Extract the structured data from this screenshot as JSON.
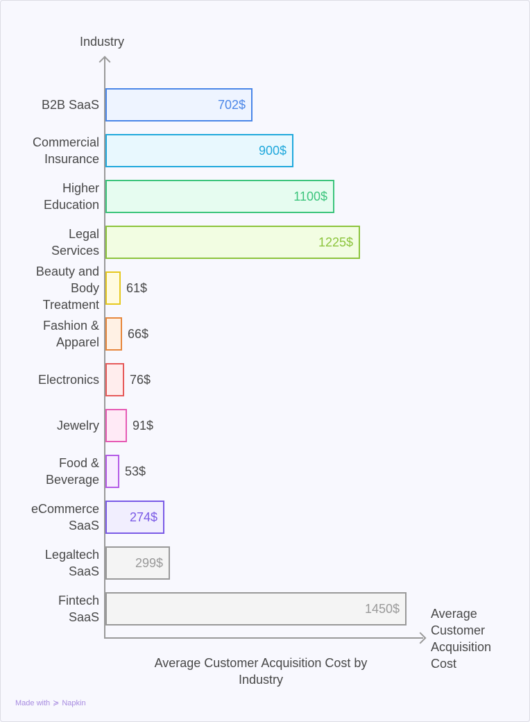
{
  "chart_data": {
    "type": "bar",
    "orientation": "horizontal",
    "title": "Average Customer Acquisition Cost by Industry",
    "xlabel": "Average Customer Acquisition Cost",
    "ylabel": "Industry",
    "unit": "$",
    "categories": [
      "B2B SaaS",
      "Commercial Insurance",
      "Higher Education",
      "Legal Services",
      "Beauty and Body Treatment",
      "Fashion & Apparel",
      "Electronics",
      "Jewelry",
      "Food & Beverage",
      "eCommerce SaaS",
      "Legaltech SaaS",
      "Fintech SaaS"
    ],
    "values": [
      702,
      900,
      1100,
      1225,
      61,
      66,
      76,
      91,
      53,
      274,
      299,
      1450
    ],
    "value_labels": [
      "702$",
      "900$",
      "1100$",
      "1225$",
      "61$",
      "66$",
      "76$",
      "91$",
      "53$",
      "274$",
      "299$",
      "1450$"
    ],
    "colors": [
      "#4a86e8",
      "#1fa8dc",
      "#3cc47c",
      "#8cc43c",
      "#e6c81e",
      "#e6863c",
      "#e65a5a",
      "#e65ab4",
      "#b45ae6",
      "#7a5ae6",
      "#999999",
      "#999999"
    ],
    "fills": [
      "#eef4ff",
      "#e8f8fe",
      "#e6fcf0",
      "#f2fde2",
      "#fffbe0",
      "#fff1e4",
      "#ffeded",
      "#ffeaf6",
      "#f8ecff",
      "#f1eefe",
      "#f4f4f4",
      "#f4f4f4"
    ],
    "grid": false,
    "legend": "none"
  },
  "labels": {
    "y_axis": "Industry",
    "x_axis": "Average\nCustomer\nAcquisition\nCost",
    "title": "Average Customer Acquisition Cost by Industry",
    "rows": [
      {
        "label": "B2B SaaS",
        "value": "702$"
      },
      {
        "label": "Commercial\nInsurance",
        "value": "900$"
      },
      {
        "label": "Higher\nEducation",
        "value": "1100$"
      },
      {
        "label": "Legal\nServices",
        "value": "1225$"
      },
      {
        "label": "Beauty and\nBody\nTreatment",
        "value": "61$"
      },
      {
        "label": "Fashion &\nApparel",
        "value": "66$"
      },
      {
        "label": "Electronics",
        "value": "76$"
      },
      {
        "label": "Jewelry",
        "value": "91$"
      },
      {
        "label": "Food &\nBeverage",
        "value": "53$"
      },
      {
        "label": "eCommerce\nSaaS",
        "value": "274$"
      },
      {
        "label": "Legaltech\nSaaS",
        "value": "299$"
      },
      {
        "label": "Fintech\nSaaS",
        "value": "1450$"
      }
    ]
  },
  "footer": {
    "made_with": "Made with",
    "brand": "Napkin"
  }
}
